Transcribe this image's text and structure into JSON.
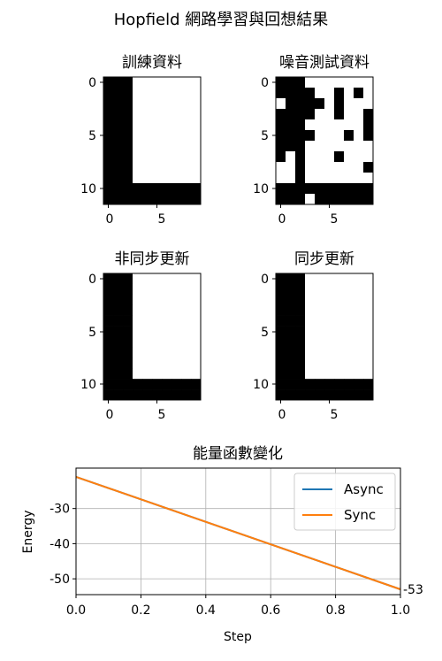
{
  "figure_title": "Hopfield 網路學習與回想結果",
  "chart_data": [
    {
      "type": "heatmap",
      "title": "訓練資料",
      "rows": 12,
      "cols": 10,
      "colors": {
        "0": "#ffffff",
        "1": "#000000"
      },
      "x_ticks": [
        "0",
        "5"
      ],
      "y_ticks": [
        "0",
        "5",
        "10"
      ],
      "grid": [
        [
          1,
          1,
          1,
          0,
          0,
          0,
          0,
          0,
          0,
          0
        ],
        [
          1,
          1,
          1,
          0,
          0,
          0,
          0,
          0,
          0,
          0
        ],
        [
          1,
          1,
          1,
          0,
          0,
          0,
          0,
          0,
          0,
          0
        ],
        [
          1,
          1,
          1,
          0,
          0,
          0,
          0,
          0,
          0,
          0
        ],
        [
          1,
          1,
          1,
          0,
          0,
          0,
          0,
          0,
          0,
          0
        ],
        [
          1,
          1,
          1,
          0,
          0,
          0,
          0,
          0,
          0,
          0
        ],
        [
          1,
          1,
          1,
          0,
          0,
          0,
          0,
          0,
          0,
          0
        ],
        [
          1,
          1,
          1,
          0,
          0,
          0,
          0,
          0,
          0,
          0
        ],
        [
          1,
          1,
          1,
          0,
          0,
          0,
          0,
          0,
          0,
          0
        ],
        [
          1,
          1,
          1,
          0,
          0,
          0,
          0,
          0,
          0,
          0
        ],
        [
          1,
          1,
          1,
          1,
          1,
          1,
          1,
          1,
          1,
          1
        ],
        [
          1,
          1,
          1,
          1,
          1,
          1,
          1,
          1,
          1,
          1
        ]
      ]
    },
    {
      "type": "heatmap",
      "title": "噪音測試資料",
      "rows": 12,
      "cols": 10,
      "colors": {
        "0": "#ffffff",
        "1": "#000000"
      },
      "x_ticks": [
        "0",
        "5"
      ],
      "y_ticks": [
        "0",
        "5",
        "10"
      ],
      "grid": [
        [
          1,
          1,
          1,
          0,
          0,
          0,
          0,
          0,
          0,
          0
        ],
        [
          1,
          1,
          1,
          1,
          0,
          0,
          1,
          0,
          1,
          0
        ],
        [
          0,
          1,
          1,
          1,
          1,
          0,
          1,
          0,
          0,
          0
        ],
        [
          1,
          1,
          1,
          1,
          0,
          0,
          1,
          0,
          0,
          1
        ],
        [
          1,
          1,
          1,
          0,
          0,
          0,
          0,
          0,
          0,
          1
        ],
        [
          1,
          1,
          1,
          1,
          0,
          0,
          0,
          1,
          0,
          1
        ],
        [
          1,
          1,
          1,
          0,
          0,
          0,
          0,
          0,
          0,
          0
        ],
        [
          1,
          0,
          1,
          0,
          0,
          0,
          1,
          0,
          0,
          0
        ],
        [
          0,
          0,
          1,
          0,
          0,
          0,
          0,
          0,
          0,
          1
        ],
        [
          0,
          0,
          1,
          0,
          0,
          0,
          0,
          0,
          0,
          0
        ],
        [
          1,
          1,
          1,
          1,
          1,
          1,
          1,
          1,
          1,
          1
        ],
        [
          1,
          1,
          1,
          0,
          1,
          1,
          1,
          1,
          1,
          1
        ]
      ]
    },
    {
      "type": "heatmap",
      "title": "非同步更新",
      "rows": 12,
      "cols": 10,
      "colors": {
        "0": "#ffffff",
        "1": "#000000"
      },
      "x_ticks": [
        "0",
        "5"
      ],
      "y_ticks": [
        "0",
        "5",
        "10"
      ],
      "grid": [
        [
          1,
          1,
          1,
          0,
          0,
          0,
          0,
          0,
          0,
          0
        ],
        [
          1,
          1,
          1,
          0,
          0,
          0,
          0,
          0,
          0,
          0
        ],
        [
          1,
          1,
          1,
          0,
          0,
          0,
          0,
          0,
          0,
          0
        ],
        [
          1,
          1,
          1,
          0,
          0,
          0,
          0,
          0,
          0,
          0
        ],
        [
          1,
          1,
          1,
          0,
          0,
          0,
          0,
          0,
          0,
          0
        ],
        [
          1,
          1,
          1,
          0,
          0,
          0,
          0,
          0,
          0,
          0
        ],
        [
          1,
          1,
          1,
          0,
          0,
          0,
          0,
          0,
          0,
          0
        ],
        [
          1,
          1,
          1,
          0,
          0,
          0,
          0,
          0,
          0,
          0
        ],
        [
          1,
          1,
          1,
          0,
          0,
          0,
          0,
          0,
          0,
          0
        ],
        [
          1,
          1,
          1,
          0,
          0,
          0,
          0,
          0,
          0,
          0
        ],
        [
          1,
          1,
          1,
          1,
          1,
          1,
          1,
          1,
          1,
          1
        ],
        [
          1,
          1,
          1,
          1,
          1,
          1,
          1,
          1,
          1,
          1
        ]
      ]
    },
    {
      "type": "heatmap",
      "title": "同步更新",
      "rows": 12,
      "cols": 10,
      "colors": {
        "0": "#ffffff",
        "1": "#000000"
      },
      "x_ticks": [
        "0",
        "5"
      ],
      "y_ticks": [
        "0",
        "5",
        "10"
      ],
      "grid": [
        [
          1,
          1,
          1,
          0,
          0,
          0,
          0,
          0,
          0,
          0
        ],
        [
          1,
          1,
          1,
          0,
          0,
          0,
          0,
          0,
          0,
          0
        ],
        [
          1,
          1,
          1,
          0,
          0,
          0,
          0,
          0,
          0,
          0
        ],
        [
          1,
          1,
          1,
          0,
          0,
          0,
          0,
          0,
          0,
          0
        ],
        [
          1,
          1,
          1,
          0,
          0,
          0,
          0,
          0,
          0,
          0
        ],
        [
          1,
          1,
          1,
          0,
          0,
          0,
          0,
          0,
          0,
          0
        ],
        [
          1,
          1,
          1,
          0,
          0,
          0,
          0,
          0,
          0,
          0
        ],
        [
          1,
          1,
          1,
          0,
          0,
          0,
          0,
          0,
          0,
          0
        ],
        [
          1,
          1,
          1,
          0,
          0,
          0,
          0,
          0,
          0,
          0
        ],
        [
          1,
          1,
          1,
          0,
          0,
          0,
          0,
          0,
          0,
          0
        ],
        [
          1,
          1,
          1,
          1,
          1,
          1,
          1,
          1,
          1,
          1
        ],
        [
          1,
          1,
          1,
          1,
          1,
          1,
          1,
          1,
          1,
          1
        ]
      ]
    },
    {
      "type": "line",
      "title": "能量函數變化",
      "xlabel": "Step",
      "ylabel": "Energy",
      "xlim": [
        0.0,
        1.0
      ],
      "ylim": [
        -54.5,
        -18.5
      ],
      "x_ticks": [
        "0.0",
        "0.2",
        "0.4",
        "0.6",
        "0.8",
        "1.0"
      ],
      "x_tick_values": [
        0.0,
        0.2,
        0.4,
        0.6,
        0.8,
        1.0
      ],
      "y_ticks": [
        "-30",
        "-40",
        "-50"
      ],
      "y_tick_values": [
        -30,
        -40,
        -50
      ],
      "grid": true,
      "legend_position": "top-right",
      "series": [
        {
          "name": "Async",
          "color": "#1f77b4",
          "x": [
            0,
            1
          ],
          "y": [
            -21,
            -53
          ]
        },
        {
          "name": "Sync",
          "color": "#ff7f0e",
          "x": [
            0,
            1
          ],
          "y": [
            -21,
            -53
          ]
        }
      ],
      "annotations": [
        {
          "text": "-53",
          "x": 1.0,
          "y": -53
        }
      ]
    }
  ]
}
